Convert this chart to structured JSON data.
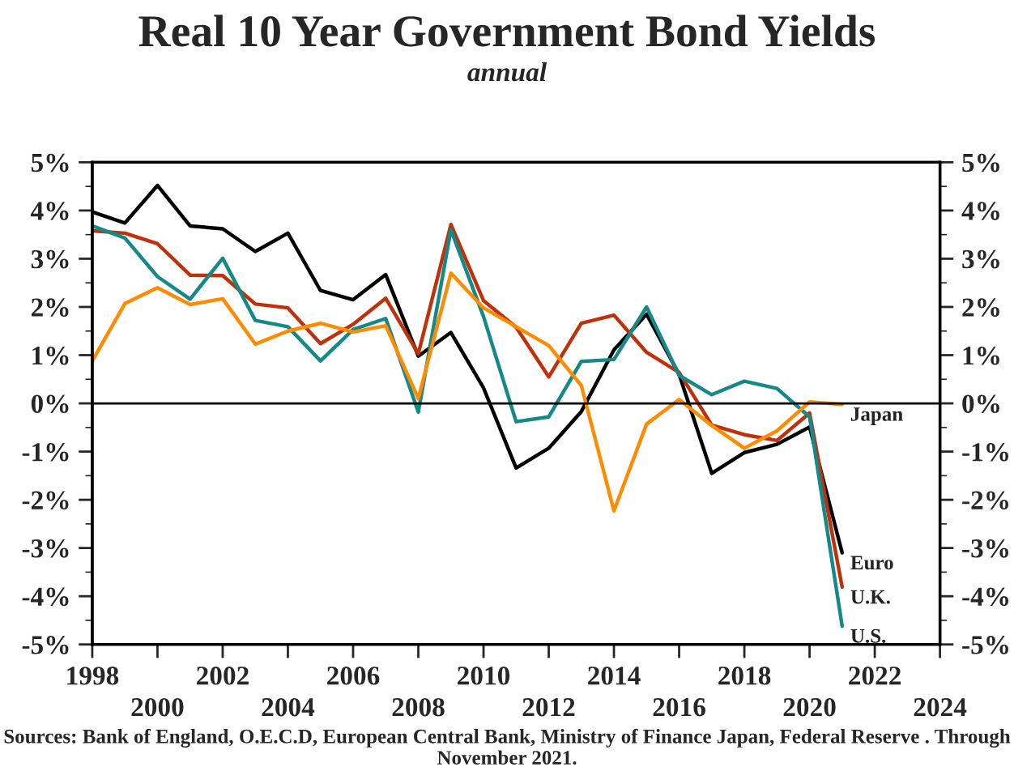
{
  "chart_data": {
    "type": "line",
    "title": "Real 10 Year Government Bond Yields",
    "subtitle": "annual",
    "x": [
      1998,
      1999,
      2000,
      2001,
      2002,
      2003,
      2004,
      2005,
      2006,
      2007,
      2008,
      2009,
      2010,
      2011,
      2012,
      2013,
      2014,
      2015,
      2016,
      2017,
      2018,
      2019,
      2020,
      2021
    ],
    "series": [
      {
        "name": "Euro",
        "color": "#000000",
        "values": [
          3.97,
          3.74,
          4.52,
          3.68,
          3.62,
          3.15,
          3.53,
          2.34,
          2.15,
          2.67,
          0.98,
          1.47,
          0.32,
          -1.34,
          -0.93,
          -0.17,
          1.11,
          1.85,
          0.6,
          -1.45,
          -1.02,
          -0.85,
          -0.49,
          -3.1
        ]
      },
      {
        "name": "U.K.",
        "color": "#c0300a",
        "values": [
          3.58,
          3.53,
          3.31,
          2.66,
          2.65,
          2.06,
          1.98,
          1.24,
          1.64,
          2.18,
          1.03,
          3.71,
          2.13,
          1.58,
          0.55,
          1.66,
          1.83,
          1.06,
          0.64,
          -0.45,
          -0.65,
          -0.77,
          -0.2,
          -3.81
        ]
      },
      {
        "name": "U.S.",
        "color": "#14898a",
        "values": [
          3.68,
          3.43,
          2.63,
          2.16,
          3.01,
          1.72,
          1.59,
          0.88,
          1.53,
          1.76,
          -0.18,
          3.6,
          1.8,
          -0.38,
          -0.28,
          0.87,
          0.91,
          2.0,
          0.58,
          0.18,
          0.46,
          0.31,
          -0.28,
          -4.62
        ]
      },
      {
        "name": "Japan",
        "color": "#ff8c00",
        "values": [
          0.88,
          2.07,
          2.4,
          2.05,
          2.17,
          1.23,
          1.5,
          1.66,
          1.48,
          1.61,
          0.1,
          2.7,
          1.98,
          1.59,
          1.2,
          0.37,
          -2.23,
          -0.43,
          0.08,
          -0.46,
          -0.93,
          -0.57,
          0.03,
          -0.02
        ]
      }
    ],
    "xlim": [
      1998,
      2024
    ],
    "xticks": [
      1998,
      {
        "value": 2000,
        "label": null
      },
      2002,
      {
        "value": 2004,
        "label": null
      },
      2006,
      {
        "value": 2008,
        "label": null
      },
      2010,
      {
        "value": 2012,
        "label": null
      },
      2014,
      {
        "value": 2016,
        "label": null
      },
      2018,
      {
        "value": 2020,
        "label": null
      },
      2022,
      {
        "value": 2024,
        "label": null
      }
    ],
    "x2lim": [
      1998,
      2024
    ],
    "x2ticks": [
      2000,
      2004,
      2008,
      2012,
      2016,
      2020,
      2024
    ],
    "ylim": [
      -5,
      5
    ],
    "yticks": [
      {
        "value": -5,
        "label": "-5%"
      },
      {
        "value": -4,
        "label": "-4%"
      },
      {
        "value": -3,
        "label": "-3%"
      },
      {
        "value": -2,
        "label": "-2%"
      },
      {
        "value": -1,
        "label": "-1%"
      },
      {
        "value": 0,
        "label": "0%"
      },
      {
        "value": 1,
        "label": "1%"
      },
      {
        "value": 2,
        "label": "2%"
      },
      {
        "value": 3,
        "label": "3%"
      },
      {
        "value": 4,
        "label": "4%"
      },
      {
        "value": 5,
        "label": "5%"
      }
    ],
    "y2lim": [
      -5,
      5
    ],
    "y2ticks": [
      {
        "value": -5,
        "label": "-5%"
      },
      {
        "value": -4,
        "label": "-4%"
      },
      {
        "value": -3,
        "label": "-3%"
      },
      {
        "value": -2,
        "label": "-2%"
      },
      {
        "value": -1,
        "label": "-1%"
      },
      {
        "value": 0,
        "label": "0%"
      },
      {
        "value": 1,
        "label": "1%"
      },
      {
        "value": 2,
        "label": "2%"
      },
      {
        "value": 3,
        "label": "3%"
      },
      {
        "value": 4,
        "label": "4%"
      },
      {
        "value": 5,
        "label": "5%"
      }
    ],
    "ref_lines": [
      {
        "axis": "y",
        "value": 0,
        "color": "#000000"
      }
    ],
    "grid": false,
    "legend": false,
    "marker": "none",
    "line_style": "solid",
    "annotations": [
      "Sources: Bank of England, O.E.C.D, European Central Bank, Ministry of Finance Japan, Federal Reserve . Through November 2021."
    ]
  }
}
